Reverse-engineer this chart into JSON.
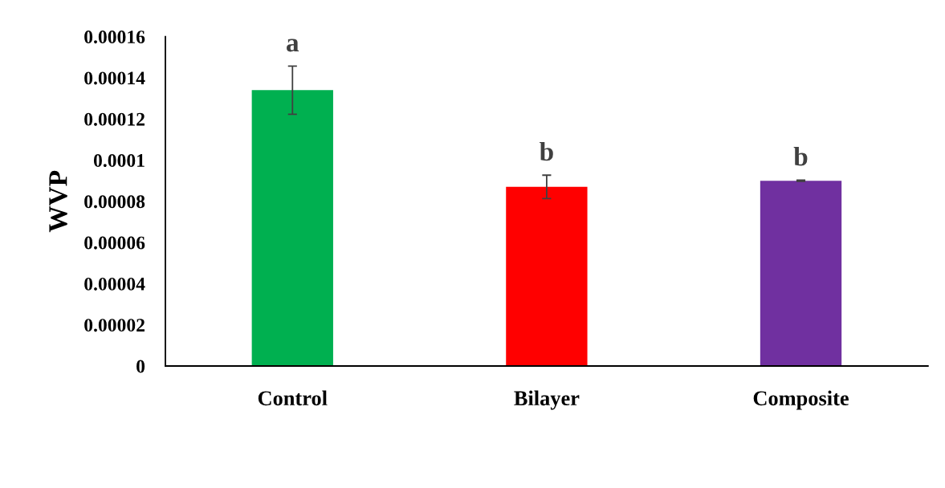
{
  "chart_data": {
    "type": "bar",
    "ylabel": "WVP",
    "categories": [
      "Control",
      "Bilayer",
      "Composite"
    ],
    "values": [
      0.000134,
      8.7e-05,
      9e-05
    ],
    "colors": [
      "#00b050",
      "#ff0000",
      "#7030a0"
    ],
    "errors": [
      1.17e-05,
      5.7e-06,
      3e-07
    ],
    "ylim": [
      0,
      0.00016
    ],
    "yticks": [
      0,
      {
        "value": 2e-05,
        "label": "0.00002"
      },
      {
        "value": 4e-05,
        "label": "0.00004"
      },
      {
        "value": 6e-05,
        "label": "0.00006"
      },
      {
        "value": 8e-05,
        "label": "0.00008"
      },
      {
        "value": 0.0001,
        "label": "0.0001"
      },
      {
        "value": 0.00012,
        "label": "0.00012"
      },
      {
        "value": 0.00014,
        "label": "0.00014"
      },
      {
        "value": 0.00016,
        "label": "0.00016"
      }
    ],
    "annotations": [
      "a",
      "b",
      "b"
    ],
    "grid": false,
    "legend": false
  }
}
